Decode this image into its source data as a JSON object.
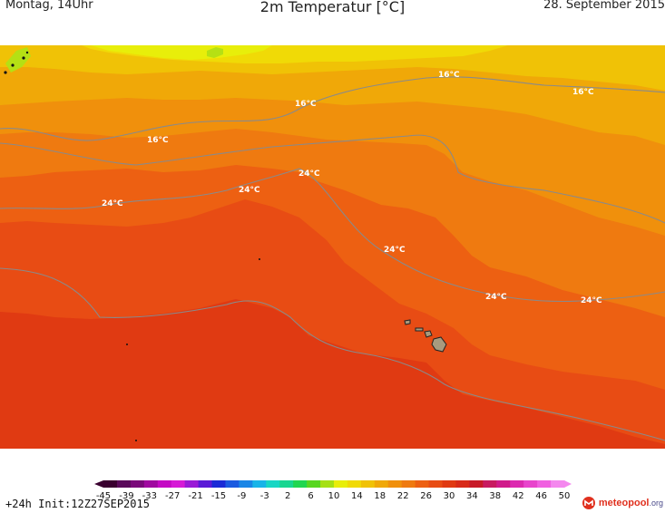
{
  "header": {
    "left": "Montag, 14Uhr",
    "title": "2m Temperatur [°C]",
    "right": "28. September 2015"
  },
  "map": {
    "contour_labels": [
      {
        "text": "16°C",
        "band": 16
      },
      {
        "text": "16°C",
        "band": 16
      },
      {
        "text": "16°C",
        "band": 16
      },
      {
        "text": "16°C",
        "band": 16
      },
      {
        "text": "24°C",
        "band": 24
      },
      {
        "text": "24°C",
        "band": 24
      },
      {
        "text": "24°C",
        "band": 24
      },
      {
        "text": "24°C",
        "band": 24
      },
      {
        "text": "24°C",
        "band": 24
      },
      {
        "text": "24°C",
        "band": 24
      }
    ],
    "band_colors": {
      "c10": "#b5e014",
      "c12": "#e8ee0a",
      "c14": "#f0da06",
      "c16": "#f0c206",
      "c18": "#f0a808",
      "c20": "#f0900c",
      "c22": "#ef7a10",
      "c24": "#ed6012",
      "c26": "#e84c14",
      "c28": "#e03a12",
      "c30": "#d82a18",
      "land": "#a89a7e"
    }
  },
  "legend": {
    "ticks": [
      "-45",
      "-39",
      "-33",
      "-27",
      "-21",
      "-15",
      "-9",
      "-3",
      "2",
      "6",
      "10",
      "14",
      "18",
      "22",
      "26",
      "30",
      "34",
      "38",
      "42",
      "46",
      "50"
    ],
    "colors": [
      "#3a0030",
      "#5a0a5a",
      "#7a0a7a",
      "#a00aa0",
      "#c40ac4",
      "#d61ad6",
      "#9a1ad6",
      "#5a1ad6",
      "#1a2ad6",
      "#1a5ae0",
      "#1a86e6",
      "#18b4e8",
      "#18d6c4",
      "#18d690",
      "#20d650",
      "#58d620",
      "#a6e014",
      "#e8ee0a",
      "#f0da06",
      "#f0c206",
      "#f0a808",
      "#f0900c",
      "#ef7a10",
      "#ed6012",
      "#e84c14",
      "#e03a12",
      "#d82a18",
      "#c81a28",
      "#c81a60",
      "#d01a8a",
      "#dc2ab0",
      "#e844cc",
      "#f060e0",
      "#f488ee"
    ],
    "run_info": "+24h Init:12Z27SEP2015",
    "brand_main": "meteopool",
    "brand_tld": ".org"
  }
}
